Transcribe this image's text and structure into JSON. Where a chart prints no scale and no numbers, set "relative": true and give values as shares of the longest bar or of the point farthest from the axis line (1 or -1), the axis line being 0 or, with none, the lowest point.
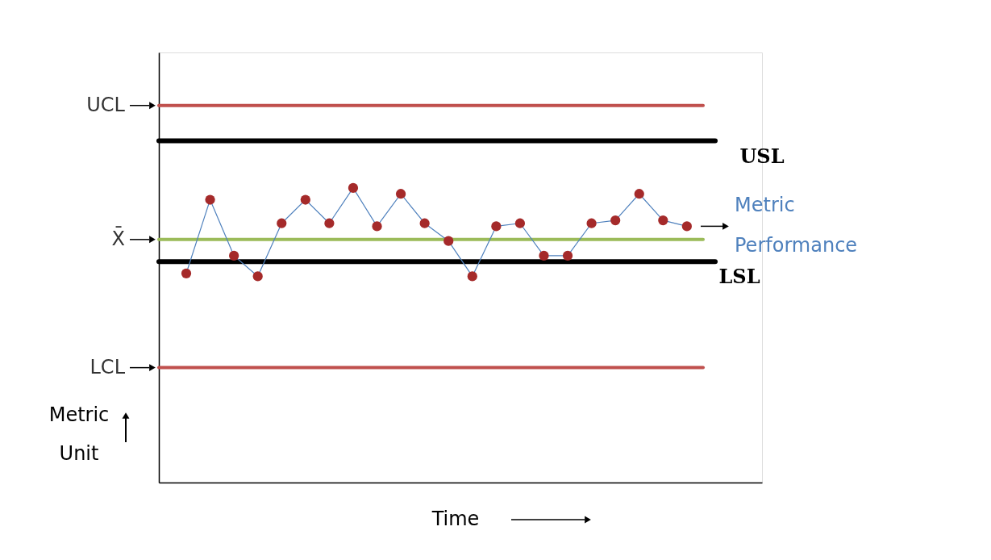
{
  "chart_data": {
    "type": "line",
    "relative": true,
    "xlabel": "Time",
    "ylabel": "Metric Unit",
    "categories": [
      null,
      null,
      null,
      null,
      null,
      null,
      null,
      null,
      null,
      null,
      null,
      null,
      null,
      null,
      null,
      null,
      null,
      null,
      null,
      null,
      null,
      null
    ],
    "series": [
      {
        "name": "Metric Performance",
        "color": "#4f81bd",
        "values": [
          0.71,
          0.96,
          0.77,
          0.7,
          0.88,
          0.96,
          0.88,
          1.0,
          0.87,
          0.98,
          0.88,
          0.82,
          0.7,
          0.87,
          0.88,
          0.77,
          0.77,
          0.88,
          0.89,
          0.98,
          0.89,
          0.87
        ]
      }
    ],
    "marker": "circle",
    "line_style": "solid",
    "grid": false,
    "ref_lines": [
      {
        "axis": "y",
        "value": 1.28,
        "label": "UCL",
        "color": "#c0504d"
      },
      {
        "axis": "y",
        "value": 1.16,
        "label": "USL",
        "color": "#000000"
      },
      {
        "axis": "y",
        "value": 0.825,
        "label": "X̄",
        "color": "#9bbb59"
      },
      {
        "axis": "y",
        "value": 0.75,
        "label": "LSL",
        "color": "#000000"
      },
      {
        "axis": "y",
        "value": 0.39,
        "label": "LCL",
        "color": "#c0504d"
      }
    ]
  }
}
